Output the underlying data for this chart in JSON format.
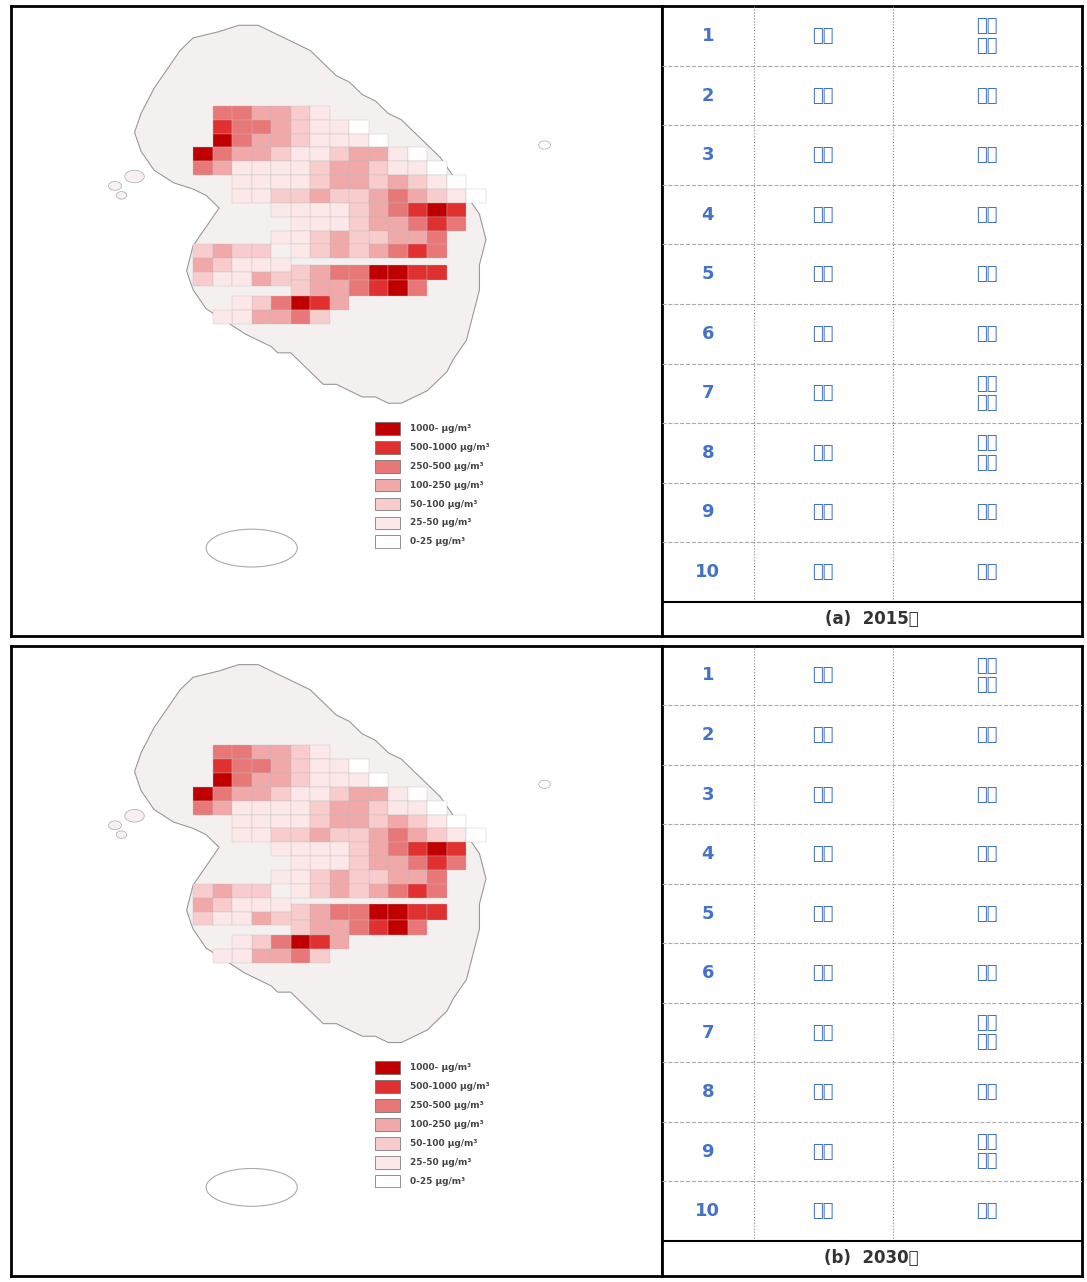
{
  "panel_a": {
    "label": "(a)  2015년",
    "table": [
      {
        "rank": "1",
        "region": "경북",
        "district": "포항\n남구"
      },
      {
        "rank": "2",
        "region": "부산",
        "district": "동구"
      },
      {
        "rank": "3",
        "region": "부산",
        "district": "서구"
      },
      {
        "rank": "4",
        "region": "충남",
        "district": "당진"
      },
      {
        "rank": "5",
        "region": "전남",
        "district": "광양"
      },
      {
        "rank": "6",
        "region": "인천",
        "district": "동구"
      },
      {
        "rank": "7",
        "region": "경남",
        "district": "창원\n진해"
      },
      {
        "rank": "8",
        "region": "경남",
        "district": "창원\n성산"
      },
      {
        "rank": "9",
        "region": "울산",
        "district": "남구"
      },
      {
        "rank": "10",
        "region": "부산",
        "district": "사하"
      }
    ]
  },
  "panel_b": {
    "label": "(b)  2030년",
    "table": [
      {
        "rank": "1",
        "region": "경북",
        "district": "포항\n남구"
      },
      {
        "rank": "2",
        "region": "부산",
        "district": "동구"
      },
      {
        "rank": "3",
        "region": "부산",
        "district": "서구"
      },
      {
        "rank": "4",
        "region": "충남",
        "district": "당진"
      },
      {
        "rank": "5",
        "region": "전남",
        "district": "광양"
      },
      {
        "rank": "6",
        "region": "인천",
        "district": "동구"
      },
      {
        "rank": "7",
        "region": "경남",
        "district": "창원\n진해"
      },
      {
        "rank": "8",
        "region": "울산",
        "district": "남구"
      },
      {
        "rank": "9",
        "region": "경남",
        "district": "창원\n성산"
      },
      {
        "rank": "10",
        "region": "부산",
        "district": "사하"
      }
    ]
  },
  "legend_items": [
    {
      "label": "1000- μg/m³",
      "color": "#C00000"
    },
    {
      "label": "500-1000 μg/m³",
      "color": "#E03030"
    },
    {
      "label": "250-500 μg/m³",
      "color": "#E87878"
    },
    {
      "label": "100-250 μg/m³",
      "color": "#F0A8A8"
    },
    {
      "label": "50-100 μg/m³",
      "color": "#F8CCCC"
    },
    {
      "label": "25-50 μg/m³",
      "color": "#FCE8E8"
    },
    {
      "label": "0-25 μg/m³",
      "color": "#FFFFFF"
    }
  ],
  "table_text_color": "#4472C4",
  "figsize": [
    10.87,
    12.82
  ],
  "dpi": 100
}
